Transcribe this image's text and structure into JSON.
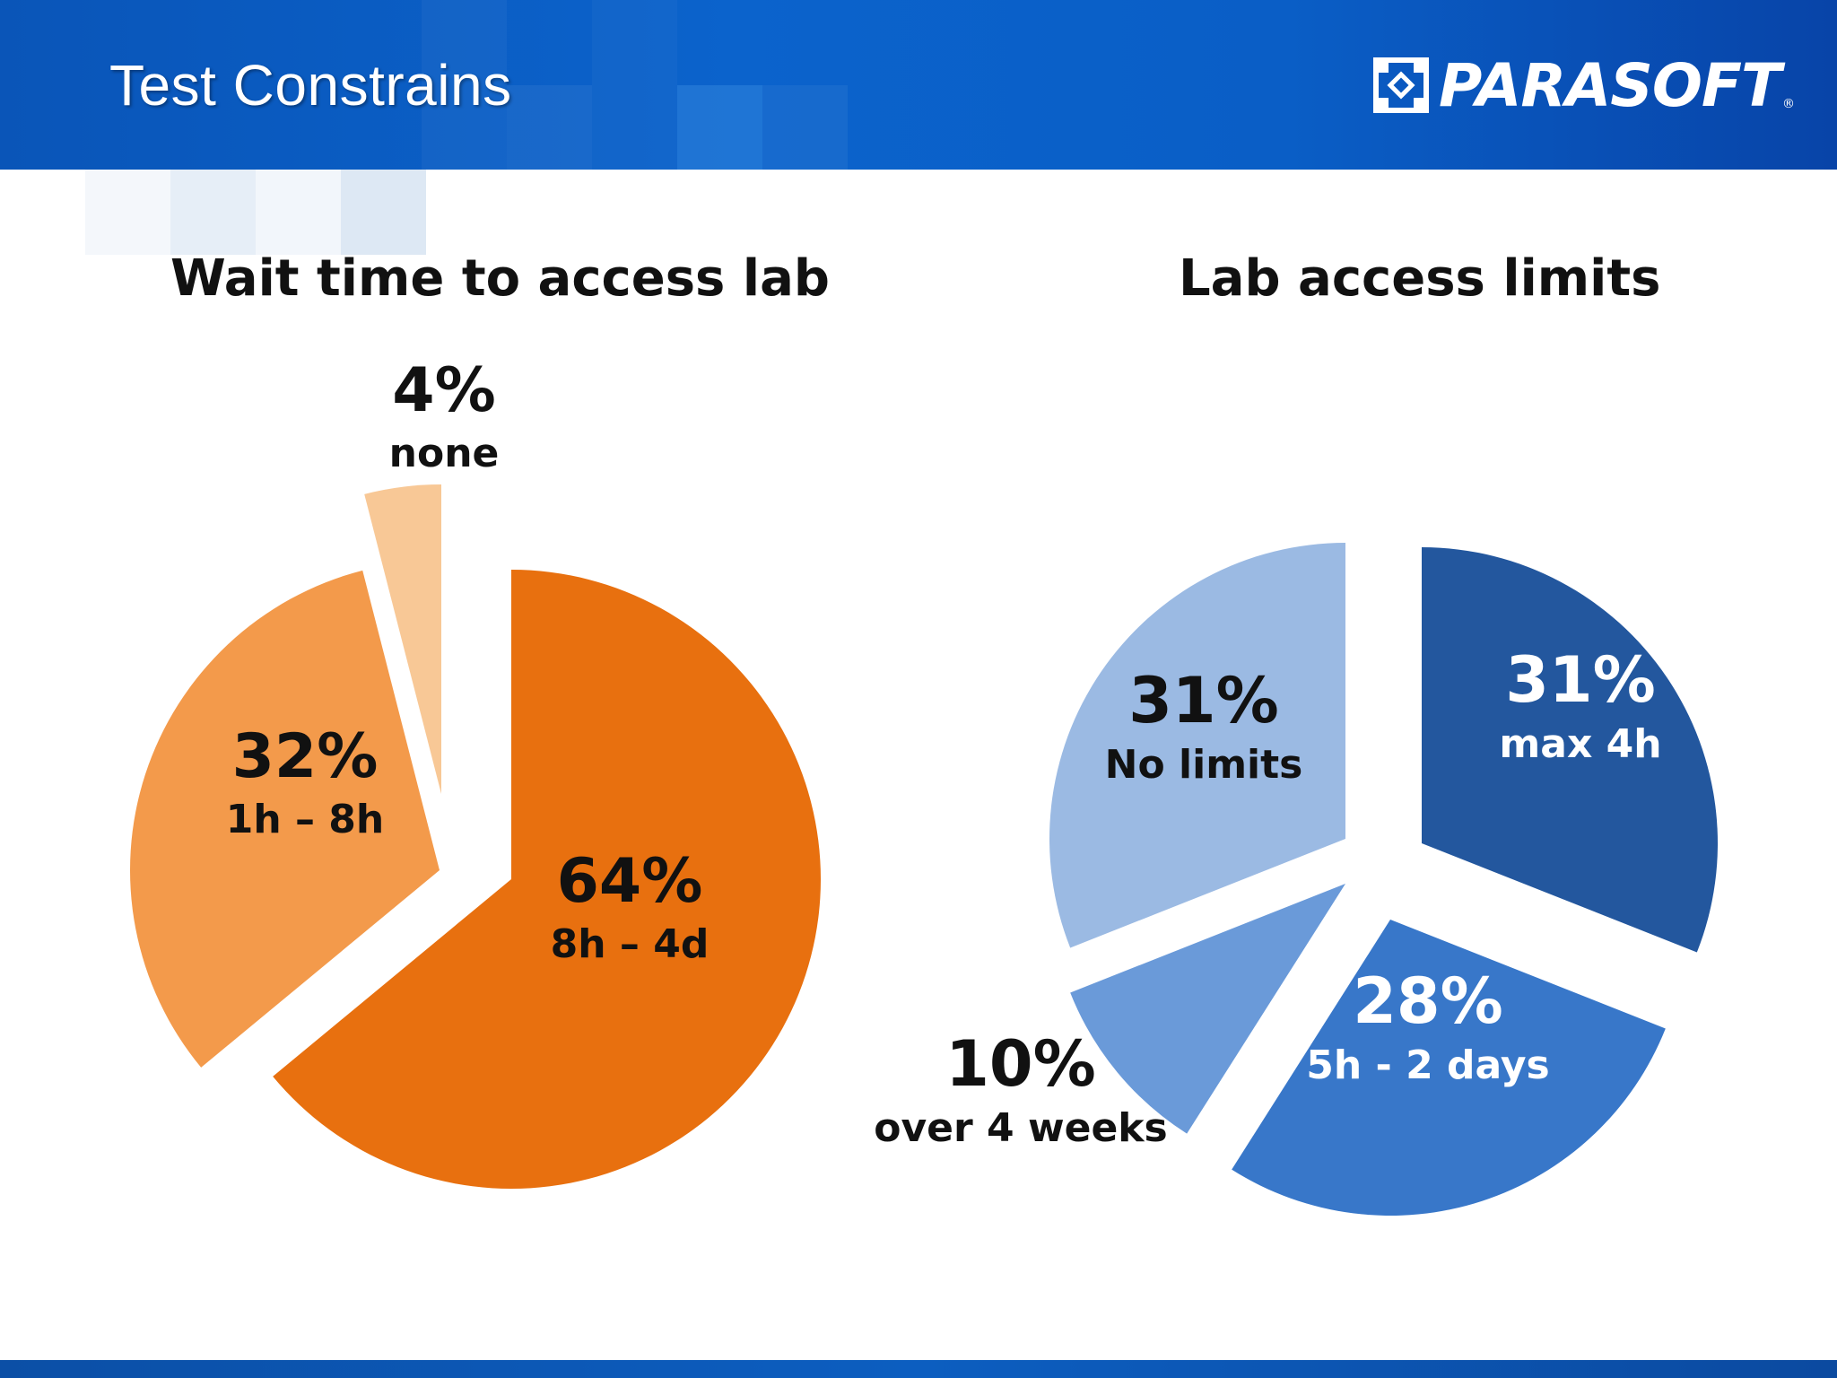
{
  "slide": {
    "title": "Test Constrains",
    "brand": "PARASOFT",
    "brand_mark": "®",
    "header_color": "#0b5cc4"
  },
  "chart_data": [
    {
      "type": "pie",
      "title": "Wait time to access lab",
      "slices": [
        {
          "value": 64,
          "percent_label": "64%",
          "label": "8h – 4d",
          "color": "#e8700f"
        },
        {
          "value": 32,
          "percent_label": "32%",
          "label": "1h – 8h",
          "color": "#f39a4b"
        },
        {
          "value": 4,
          "percent_label": "4%",
          "label": "none",
          "color": "#f8c896"
        }
      ]
    },
    {
      "type": "pie",
      "title": "Lab access limits",
      "slices": [
        {
          "value": 31,
          "percent_label": "31%",
          "label": "max 4h",
          "color": "#23579e"
        },
        {
          "value": 28,
          "percent_label": "28%",
          "label": "5h - 2 days",
          "color": "#3877c9"
        },
        {
          "value": 10,
          "percent_label": "10%",
          "label": "over 4 weeks",
          "color": "#6a9ad9"
        },
        {
          "value": 31,
          "percent_label": "31%",
          "label": "No limits",
          "color": "#9bbae3"
        }
      ]
    }
  ]
}
